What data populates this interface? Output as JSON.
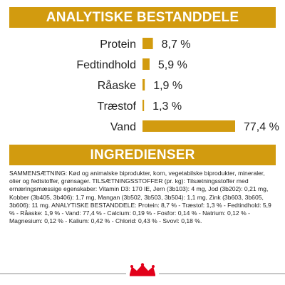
{
  "section1": {
    "title": "ANALYTISKE BESTANDDELE"
  },
  "section2": {
    "title": "INGREDIENSER"
  },
  "colors": {
    "accent": "#d29b0f",
    "logo_red": "#e2001a"
  },
  "chart_data": {
    "type": "bar",
    "orientation": "horizontal",
    "title": "ANALYTISKE BESTANDDELE",
    "categories": [
      "Protein",
      "Fedtindhold",
      "Råaske",
      "Træstof",
      "Vand"
    ],
    "values": [
      8.7,
      5.9,
      1.9,
      1.3,
      77.4
    ],
    "value_labels": [
      "8,7 %",
      "5,9 %",
      "1,9 %",
      "1,3 %",
      "77,4 %"
    ],
    "unit": "%",
    "xlim": [
      0,
      77.4
    ],
    "grid": false,
    "legend": "none"
  },
  "ingredients": {
    "text": "SAMMENSÆTNING: Kød og animalske biprodukter, korn, vegetabilske biprodukter, mineraler, olier og fedtstoffer, grønsager. TILSÆTNINGSSTOFFER (pr. kg): Tilsætningsstoffer med ernæringsmæssige egenskaber: Vitamin D3: 170 IE, Jern (3b103): 4 mg, Jod (3b202): 0,21 mg, Kobber (3b405, 3b406): 1,7 mg, Mangan (3b502, 3b503, 3b504): 1,1 mg, Zink (3b603, 3b605, 3b606): 11 mg. ANALYTISKE BESTANDDELE: Protein: 8,7 % - Træstof: 1,3 % - Fedtindhold: 5,9 % - Råaske: 1,9 % - Vand: 77,4 % - Calcium: 0,19 % - Fosfor: 0,14 % - Natrium: 0,12 % - Magnesium: 0,12 % - Kalium: 0,42 % - Chlorid: 0,43 % - Svovl: 0,18 %."
  },
  "logo": {
    "icon": "crown-icon"
  }
}
